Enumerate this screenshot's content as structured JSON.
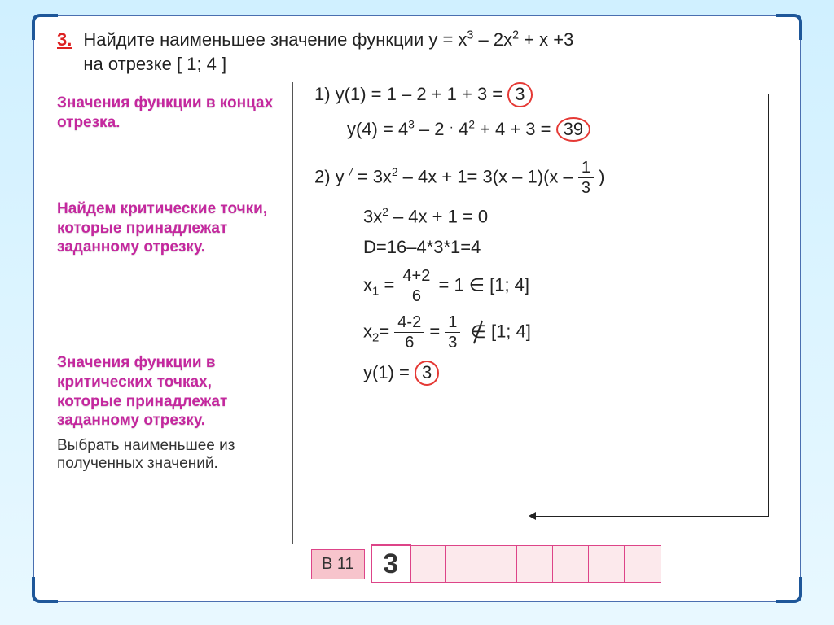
{
  "colors": {
    "accent_red": "#d22",
    "note_magenta": "#c4289e",
    "circle_red": "#e53935",
    "frame_blue": "#1e5799",
    "answer_pink_bg": "#f7c4cc",
    "answer_pink_border": "#d48"
  },
  "problem": {
    "number": "3.",
    "text_html": "Найдите наименьшее значение функции y = x<sup>3</sup> – 2x<sup>2</sup> + x +3<br>на отрезке [ 1; 4 ]"
  },
  "notes": {
    "n1": "Значения функции в концах отрезка.",
    "n2": "Найдем критические точки, которые принадлежат заданному отрезку.",
    "n3": "Значения функции в критических точках, которые принадлежат заданному отрезку.",
    "n4": "Выбрать наименьшее из полученных значений."
  },
  "work": {
    "l1": "1) y(1) = 1 – 2 + 1 + 3 =",
    "l1_ans": "3",
    "l2_a": "y(4) = 4",
    "l2_b": "– 2",
    "l2_c": "4",
    "l2_d": "+ 4 + 3 =",
    "l2_ans": "39",
    "l3_a": "2) y",
    "l3_b": " = 3x",
    "l3_c": " – 4x + 1=  3(x – 1)(x – ",
    "l3_frac_n": "1",
    "l3_frac_d": "3",
    "l3_end": " )",
    "l4": "3x",
    "l4b": " – 4x + 1 = 0",
    "l5": "D=16–4*3*1=4",
    "l6_a": "x",
    "l6_b": "= ",
    "l6_fr_n": "4+2",
    "l6_fr_d": "6",
    "l6_c": "  = 1  ",
    "l6_in": "∈",
    "l6_d": "  [1; 4]",
    "l7_a": "x",
    "l7_fr_n": "4-2",
    "l7_fr_d": "6",
    "l7_b": "  =  ",
    "l7_fr2_n": "1",
    "l7_fr2_d": "3",
    "l7_notin": "∈",
    "l7_c": "  [1; 4]",
    "l8_a": "y(1) = ",
    "l8_ans": "3"
  },
  "answer": {
    "label": "В 11",
    "cells": [
      "3",
      "",
      "",
      "",
      "",
      "",
      "",
      ""
    ]
  }
}
